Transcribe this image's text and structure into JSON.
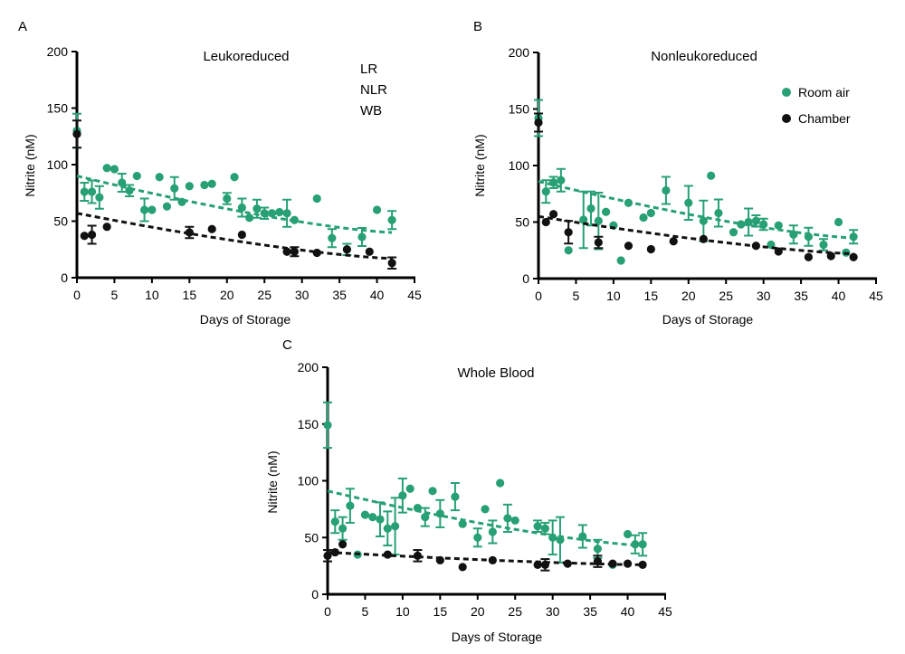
{
  "colors": {
    "room_air": "#27a074",
    "chamber": "#111111",
    "axis": "#000000"
  },
  "legend": {
    "items": [
      {
        "label": "Room air",
        "series": "room_air"
      },
      {
        "label": "Chamber",
        "series": "chamber"
      }
    ]
  },
  "chart_data": [
    {
      "panel_label": "A",
      "type": "scatter",
      "title": "Leukoreduced",
      "annotation_lines": [
        "LR",
        "NLR",
        "WB"
      ],
      "xlabel": "Days of Storage",
      "ylabel": "Nitrite (nM)",
      "xlim": [
        0,
        45
      ],
      "ylim": [
        0,
        200
      ],
      "xticks": [
        0,
        5,
        10,
        15,
        20,
        25,
        30,
        35,
        40,
        45
      ],
      "yticks": [
        0,
        50,
        100,
        150,
        200
      ],
      "series": [
        {
          "name": "Room air",
          "key": "room_air",
          "points": [
            [
              0,
              130,
              15
            ],
            [
              1,
              76,
              8
            ],
            [
              2,
              76,
              10
            ],
            [
              3,
              71,
              10
            ],
            [
              4,
              97,
              0
            ],
            [
              5,
              96,
              0
            ],
            [
              6,
              84,
              8
            ],
            [
              7,
              77,
              5
            ],
            [
              8,
              90,
              0
            ],
            [
              9,
              60,
              10
            ],
            [
              10,
              60,
              0
            ],
            [
              11,
              89,
              0
            ],
            [
              12,
              63,
              0
            ],
            [
              13,
              79,
              10
            ],
            [
              14,
              67,
              0
            ],
            [
              15,
              81,
              0
            ],
            [
              17,
              82,
              0
            ],
            [
              18,
              83,
              0
            ],
            [
              20,
              70,
              5
            ],
            [
              21,
              89,
              0
            ],
            [
              22,
              62,
              8
            ],
            [
              23,
              53,
              0
            ],
            [
              24,
              61,
              8
            ],
            [
              25,
              57,
              5
            ],
            [
              26,
              57,
              0
            ],
            [
              27,
              58,
              0
            ],
            [
              28,
              57,
              12
            ],
            [
              29,
              51,
              0
            ],
            [
              32,
              70,
              0
            ],
            [
              34,
              35,
              8
            ],
            [
              36,
              25,
              5
            ],
            [
              38,
              36,
              8
            ],
            [
              40,
              60,
              0
            ],
            [
              42,
              51,
              8
            ]
          ],
          "trend": [
            90,
            40
          ]
        },
        {
          "name": "Chamber",
          "key": "chamber",
          "points": [
            [
              0,
              127,
              12
            ],
            [
              1,
              37,
              0
            ],
            [
              2,
              38,
              8
            ],
            [
              4,
              45,
              0
            ],
            [
              15,
              40,
              5
            ],
            [
              18,
              43,
              0
            ],
            [
              22,
              38,
              0
            ],
            [
              28,
              23,
              0
            ],
            [
              29,
              23,
              4
            ],
            [
              32,
              22,
              0
            ],
            [
              36,
              25,
              0
            ],
            [
              39,
              23,
              0
            ],
            [
              42,
              13,
              5
            ]
          ],
          "trend": [
            57,
            17
          ]
        }
      ]
    },
    {
      "panel_label": "B",
      "type": "scatter",
      "title": "Nonleukoreduced",
      "xlabel": "Days of Storage",
      "ylabel": "Nitrite (nM)",
      "xlim": [
        0,
        45
      ],
      "ylim": [
        0,
        200
      ],
      "xticks": [
        0,
        5,
        10,
        15,
        20,
        25,
        30,
        35,
        40,
        45
      ],
      "yticks": [
        0,
        50,
        100,
        150,
        200
      ],
      "series": [
        {
          "name": "Room air",
          "key": "room_air",
          "points": [
            [
              0,
              142,
              16
            ],
            [
              1,
              77,
              10
            ],
            [
              2,
              85,
              5
            ],
            [
              3,
              87,
              10
            ],
            [
              4,
              25,
              0
            ],
            [
              6,
              52,
              25
            ],
            [
              7,
              62,
              15
            ],
            [
              8,
              51,
              25
            ],
            [
              9,
              59,
              0
            ],
            [
              10,
              47,
              0
            ],
            [
              11,
              16,
              0
            ],
            [
              12,
              67,
              0
            ],
            [
              14,
              54,
              0
            ],
            [
              15,
              58,
              0
            ],
            [
              17,
              78,
              12
            ],
            [
              20,
              67,
              15
            ],
            [
              22,
              51,
              18
            ],
            [
              23,
              91,
              0
            ],
            [
              24,
              58,
              12
            ],
            [
              26,
              41,
              0
            ],
            [
              27,
              48,
              0
            ],
            [
              28,
              50,
              12
            ],
            [
              29,
              51,
              5
            ],
            [
              30,
              48,
              5
            ],
            [
              31,
              30,
              0
            ],
            [
              32,
              47,
              0
            ],
            [
              34,
              39,
              8
            ],
            [
              36,
              37,
              8
            ],
            [
              38,
              30,
              5
            ],
            [
              40,
              50,
              0
            ],
            [
              41,
              23,
              0
            ],
            [
              42,
              37,
              6
            ]
          ],
          "trend": [
            86,
            36
          ]
        },
        {
          "name": "Chamber",
          "key": "chamber",
          "points": [
            [
              0,
              138,
              8
            ],
            [
              1,
              50,
              0
            ],
            [
              2,
              57,
              0
            ],
            [
              4,
              41,
              10
            ],
            [
              8,
              32,
              5
            ],
            [
              12,
              29,
              0
            ],
            [
              15,
              26,
              0
            ],
            [
              18,
              33,
              0
            ],
            [
              22,
              35,
              0
            ],
            [
              29,
              29,
              0
            ],
            [
              32,
              24,
              0
            ],
            [
              36,
              19,
              0
            ],
            [
              39,
              20,
              0
            ],
            [
              42,
              19,
              0
            ]
          ],
          "trend": [
            55,
            22
          ]
        }
      ]
    },
    {
      "panel_label": "C",
      "type": "scatter",
      "title": "Whole Blood",
      "xlabel": "Days of Storage",
      "ylabel": "Nitrite (nM)",
      "xlim": [
        0,
        45
      ],
      "ylim": [
        0,
        200
      ],
      "xticks": [
        0,
        5,
        10,
        15,
        20,
        25,
        30,
        35,
        40,
        45
      ],
      "yticks": [
        0,
        50,
        100,
        150,
        200
      ],
      "series": [
        {
          "name": "Room air",
          "key": "room_air",
          "points": [
            [
              0,
              149,
              20
            ],
            [
              1,
              64,
              10
            ],
            [
              2,
              58,
              10
            ],
            [
              3,
              78,
              15
            ],
            [
              4,
              35,
              0
            ],
            [
              5,
              70,
              0
            ],
            [
              6,
              68,
              0
            ],
            [
              7,
              66,
              15
            ],
            [
              8,
              58,
              15
            ],
            [
              9,
              60,
              25
            ],
            [
              10,
              87,
              15
            ],
            [
              11,
              93,
              0
            ],
            [
              12,
              76,
              0
            ],
            [
              13,
              68,
              8
            ],
            [
              14,
              91,
              0
            ],
            [
              15,
              71,
              12
            ],
            [
              17,
              86,
              12
            ],
            [
              18,
              62,
              0
            ],
            [
              20,
              50,
              8
            ],
            [
              21,
              75,
              0
            ],
            [
              22,
              55,
              10
            ],
            [
              23,
              98,
              0
            ],
            [
              24,
              67,
              12
            ],
            [
              25,
              65,
              0
            ],
            [
              28,
              60,
              5
            ],
            [
              29,
              58,
              5
            ],
            [
              30,
              50,
              15
            ],
            [
              31,
              48,
              20
            ],
            [
              34,
              51,
              10
            ],
            [
              36,
              40,
              8
            ],
            [
              38,
              26,
              0
            ],
            [
              40,
              53,
              0
            ],
            [
              41,
              44,
              8
            ],
            [
              42,
              44,
              10
            ]
          ],
          "trend": [
            91,
            43
          ]
        },
        {
          "name": "Chamber",
          "key": "chamber",
          "points": [
            [
              0,
              34,
              5
            ],
            [
              1,
              37,
              0
            ],
            [
              2,
              44,
              0
            ],
            [
              8,
              35,
              0
            ],
            [
              12,
              34,
              5
            ],
            [
              15,
              30,
              0
            ],
            [
              18,
              24,
              0
            ],
            [
              22,
              30,
              0
            ],
            [
              28,
              26,
              0
            ],
            [
              29,
              26,
              5
            ],
            [
              32,
              27,
              0
            ],
            [
              36,
              29,
              5
            ],
            [
              38,
              27,
              0
            ],
            [
              40,
              27,
              0
            ],
            [
              42,
              26,
              0
            ]
          ],
          "trend": [
            37,
            26
          ]
        }
      ]
    }
  ]
}
